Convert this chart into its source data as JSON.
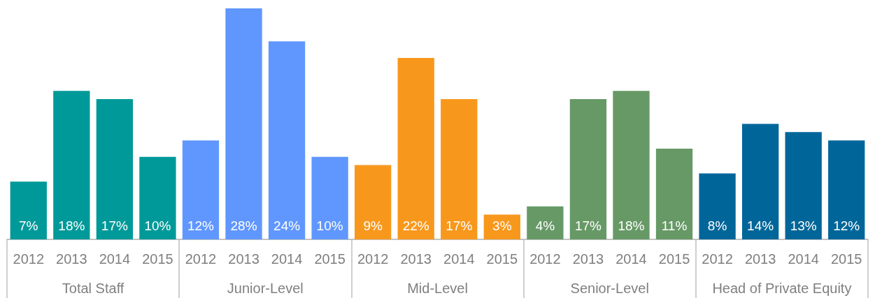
{
  "chart_data": {
    "type": "bar",
    "categories": [
      "2012",
      "2013",
      "2014",
      "2015",
      "2012",
      "2013",
      "2014",
      "2015",
      "2012",
      "2013",
      "2014",
      "2015",
      "2012",
      "2013",
      "2014",
      "2015",
      "2012",
      "2013",
      "2014",
      "2015"
    ],
    "values": [
      7,
      18,
      17,
      10,
      12,
      28,
      24,
      10,
      9,
      22,
      17,
      3,
      4,
      17,
      18,
      11,
      8,
      14,
      13,
      12
    ],
    "value_labels": [
      "7%",
      "18%",
      "17%",
      "10%",
      "12%",
      "28%",
      "24%",
      "10%",
      "9%",
      "22%",
      "17%",
      "3%",
      "4%",
      "17%",
      "18%",
      "11%",
      "8%",
      "14%",
      "13%",
      "12%"
    ],
    "colors": [
      "#009999",
      "#009999",
      "#009999",
      "#009999",
      "#6097ff",
      "#6097ff",
      "#6097ff",
      "#6097ff",
      "#f7981d",
      "#f7981d",
      "#f7981d",
      "#f7981d",
      "#669966",
      "#669966",
      "#669966",
      "#669966",
      "#006699",
      "#006699",
      "#006699",
      "#006699"
    ],
    "annotations": [
      "Total Staff",
      "Junior-Level",
      "Mid-Level",
      "Senior-Level",
      "Head of Private Equity"
    ]
  }
}
